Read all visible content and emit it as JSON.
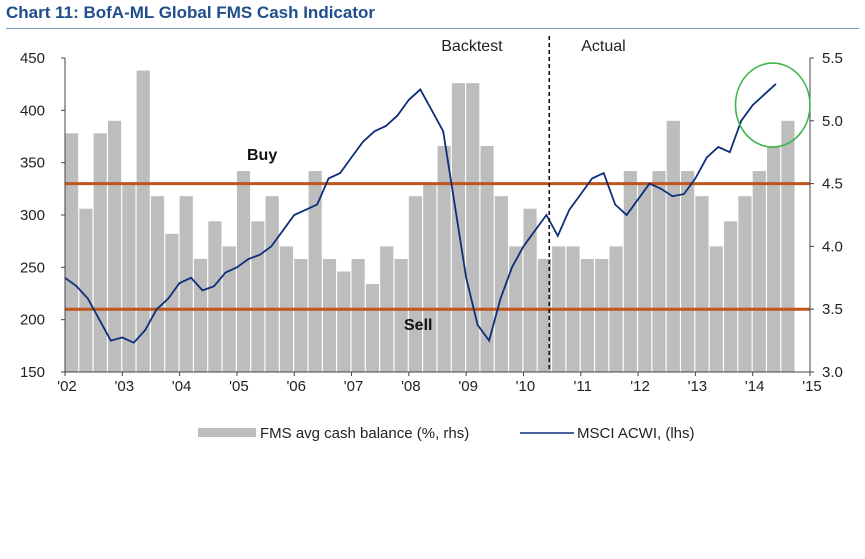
{
  "chart_data": {
    "type": "bar+line",
    "title": "Chart 11: BofA-ML Global FMS Cash Indicator",
    "x_ticks": [
      "'02",
      "'03",
      "'04",
      "'05",
      "'06",
      "'07",
      "'08",
      "'09",
      "'10",
      "'11",
      "'12",
      "'13",
      "'14",
      "'15"
    ],
    "x_range": [
      2002.0,
      2015.0
    ],
    "left_axis": {
      "ticks": [
        "450",
        "400",
        "350",
        "300",
        "250",
        "200",
        "150"
      ],
      "range": [
        150,
        450
      ]
    },
    "right_axis": {
      "ticks": [
        "5.5",
        "5.0",
        "4.5",
        "4.0",
        "3.5",
        "3.0"
      ],
      "range": [
        3.0,
        5.5
      ]
    },
    "reference_lines": [
      {
        "label": "Buy",
        "value_rhs": 4.5,
        "color": "#c0561b"
      },
      {
        "label": "Sell",
        "value_rhs": 3.5,
        "color": "#c0561b"
      }
    ],
    "divider": {
      "x": 2010.45,
      "left_label": "Backtest",
      "right_label": "Actual"
    },
    "highlight_circle": {
      "x_start": 2013.7,
      "x_end": 2015.0,
      "center_lhs": 405
    },
    "series": [
      {
        "name": "FMS avg cash balance (%, rhs)",
        "kind": "bar",
        "axis": "rhs",
        "color": "#bdbdbd",
        "x": [
          2002.0,
          2002.25,
          2002.5,
          2002.75,
          2003.0,
          2003.25,
          2003.5,
          2003.75,
          2004.0,
          2004.25,
          2004.5,
          2004.75,
          2005.0,
          2005.25,
          2005.5,
          2005.75,
          2006.0,
          2006.25,
          2006.5,
          2006.75,
          2007.0,
          2007.25,
          2007.5,
          2007.75,
          2008.0,
          2008.25,
          2008.5,
          2008.75,
          2009.0,
          2009.25,
          2009.5,
          2009.75,
          2010.0,
          2010.25,
          2010.5,
          2010.75,
          2011.0,
          2011.25,
          2011.5,
          2011.75,
          2012.0,
          2012.25,
          2012.5,
          2012.75,
          2013.0,
          2013.25,
          2013.5,
          2013.75,
          2014.0,
          2014.25,
          2014.5
        ],
        "values": [
          4.9,
          4.3,
          4.9,
          5.0,
          4.5,
          5.4,
          4.4,
          4.1,
          4.4,
          3.9,
          4.2,
          4.0,
          4.6,
          4.2,
          4.4,
          4.0,
          3.9,
          4.6,
          3.9,
          3.8,
          3.9,
          3.7,
          4.0,
          3.9,
          4.4,
          4.5,
          4.8,
          5.3,
          5.3,
          4.8,
          4.4,
          4.0,
          4.3,
          3.9,
          4.0,
          4.0,
          3.9,
          3.9,
          4.0,
          4.6,
          4.5,
          4.6,
          5.0,
          4.6,
          4.4,
          4.0,
          4.2,
          4.4,
          4.6,
          4.8,
          5.0
        ]
      },
      {
        "name": "MSCI ACWI, (lhs)",
        "kind": "line",
        "axis": "lhs",
        "color": "#0d2f7a",
        "x": [
          2002.0,
          2002.2,
          2002.4,
          2002.6,
          2002.8,
          2003.0,
          2003.2,
          2003.4,
          2003.6,
          2003.8,
          2004.0,
          2004.2,
          2004.4,
          2004.6,
          2004.8,
          2005.0,
          2005.2,
          2005.4,
          2005.6,
          2005.8,
          2006.0,
          2006.2,
          2006.4,
          2006.6,
          2006.8,
          2007.0,
          2007.2,
          2007.4,
          2007.6,
          2007.8,
          2008.0,
          2008.2,
          2008.4,
          2008.6,
          2008.8,
          2009.0,
          2009.2,
          2009.4,
          2009.6,
          2009.8,
          2010.0,
          2010.2,
          2010.4,
          2010.6,
          2010.8,
          2011.0,
          2011.2,
          2011.4,
          2011.6,
          2011.8,
          2012.0,
          2012.2,
          2012.4,
          2012.6,
          2012.8,
          2013.0,
          2013.2,
          2013.4,
          2013.6,
          2013.8,
          2014.0,
          2014.2,
          2014.4
        ],
        "values": [
          240,
          232,
          220,
          200,
          180,
          183,
          178,
          190,
          210,
          220,
          235,
          240,
          228,
          232,
          245,
          250,
          258,
          262,
          270,
          285,
          300,
          305,
          310,
          335,
          340,
          355,
          370,
          380,
          385,
          395,
          410,
          420,
          400,
          380,
          310,
          240,
          195,
          180,
          220,
          250,
          270,
          285,
          300,
          280,
          305,
          320,
          335,
          340,
          310,
          300,
          315,
          330,
          325,
          318,
          320,
          335,
          355,
          365,
          360,
          390,
          405,
          415,
          425
        ]
      }
    ]
  },
  "legend": {
    "bar_label": "FMS avg cash balance (%, rhs)",
    "line_label": "MSCI ACWI, (lhs)"
  },
  "annotations": {
    "buy": "Buy",
    "sell": "Sell",
    "backtest": "Backtest",
    "actual": "Actual"
  }
}
